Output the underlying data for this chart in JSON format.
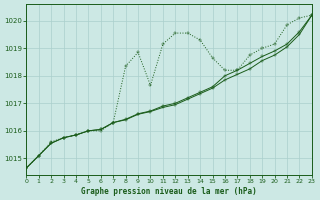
{
  "title": "Graphe pression niveau de la mer (hPa)",
  "background_color": "#cce8e4",
  "grid_color": "#aacfcc",
  "line_color": "#1a5c1a",
  "xlim": [
    0,
    23
  ],
  "ylim": [
    1014.4,
    1020.6
  ],
  "yticks": [
    1015,
    1016,
    1017,
    1018,
    1019,
    1020
  ],
  "xticks": [
    0,
    1,
    2,
    3,
    4,
    5,
    6,
    7,
    8,
    9,
    10,
    11,
    12,
    13,
    14,
    15,
    16,
    17,
    18,
    19,
    20,
    21,
    22,
    23
  ],
  "series_dotted": [
    [
      0,
      1014.65
    ],
    [
      1,
      1015.1
    ],
    [
      2,
      1015.6
    ],
    [
      3,
      1015.75
    ],
    [
      4,
      1015.85
    ],
    [
      5,
      1016.0
    ],
    [
      6,
      1016.0
    ],
    [
      7,
      1016.3
    ],
    [
      8,
      1018.35
    ],
    [
      9,
      1018.85
    ],
    [
      10,
      1017.65
    ],
    [
      11,
      1019.15
    ],
    [
      12,
      1019.55
    ],
    [
      13,
      1019.55
    ],
    [
      14,
      1019.3
    ],
    [
      15,
      1018.65
    ],
    [
      16,
      1018.2
    ],
    [
      17,
      1018.2
    ],
    [
      18,
      1018.75
    ],
    [
      19,
      1019.0
    ],
    [
      20,
      1019.15
    ],
    [
      21,
      1019.85
    ],
    [
      22,
      1020.1
    ],
    [
      23,
      1020.2
    ]
  ],
  "series_solid1": [
    [
      0,
      1014.65
    ],
    [
      1,
      1015.1
    ],
    [
      2,
      1015.55
    ],
    [
      3,
      1015.75
    ],
    [
      4,
      1015.85
    ],
    [
      5,
      1016.0
    ],
    [
      6,
      1016.05
    ],
    [
      7,
      1016.3
    ],
    [
      8,
      1016.4
    ],
    [
      9,
      1016.6
    ],
    [
      10,
      1016.7
    ],
    [
      11,
      1016.85
    ],
    [
      12,
      1016.95
    ],
    [
      13,
      1017.15
    ],
    [
      14,
      1017.35
    ],
    [
      15,
      1017.55
    ],
    [
      16,
      1017.85
    ],
    [
      17,
      1018.05
    ],
    [
      18,
      1018.25
    ],
    [
      19,
      1018.55
    ],
    [
      20,
      1018.75
    ],
    [
      21,
      1019.05
    ],
    [
      22,
      1019.5
    ],
    [
      23,
      1020.2
    ]
  ],
  "series_solid2": [
    [
      0,
      1014.65
    ],
    [
      1,
      1015.1
    ],
    [
      2,
      1015.55
    ],
    [
      3,
      1015.75
    ],
    [
      4,
      1015.85
    ],
    [
      5,
      1016.0
    ],
    [
      6,
      1016.05
    ],
    [
      7,
      1016.3
    ],
    [
      8,
      1016.42
    ],
    [
      9,
      1016.62
    ],
    [
      10,
      1016.72
    ],
    [
      11,
      1016.9
    ],
    [
      12,
      1017.0
    ],
    [
      13,
      1017.2
    ],
    [
      14,
      1017.4
    ],
    [
      15,
      1017.6
    ],
    [
      16,
      1018.0
    ],
    [
      17,
      1018.2
    ],
    [
      18,
      1018.45
    ],
    [
      19,
      1018.7
    ],
    [
      20,
      1018.9
    ],
    [
      21,
      1019.15
    ],
    [
      22,
      1019.6
    ],
    [
      23,
      1020.2
    ]
  ]
}
